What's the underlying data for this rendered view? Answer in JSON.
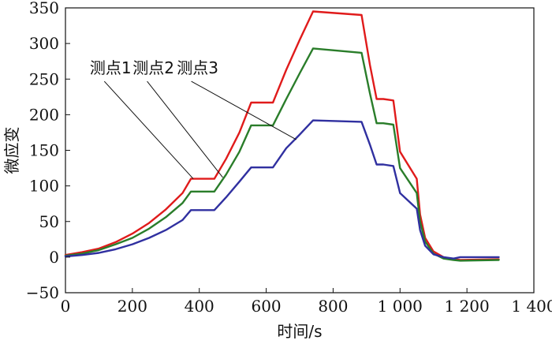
{
  "chart_data": {
    "type": "line",
    "title": "",
    "xlabel": "时间/s",
    "ylabel": "微应变",
    "xlim": [
      0,
      1400
    ],
    "ylim": [
      -50,
      350
    ],
    "xticks": [
      0,
      200,
      400,
      600,
      800,
      1000,
      1200,
      1400
    ],
    "xtick_labels": [
      "0",
      "200",
      "400",
      "600",
      "800",
      "1 000",
      "1 200",
      "1 400"
    ],
    "yticks": [
      -50,
      0,
      50,
      100,
      150,
      200,
      250,
      300,
      350
    ],
    "ytick_labels": [
      "−50",
      "0",
      "50",
      "100",
      "150",
      "200",
      "250",
      "300",
      "350"
    ],
    "grid": false,
    "legend": "none",
    "series": [
      {
        "name": "测点1",
        "color": "#e01b1b",
        "x": [
          0,
          50,
          100,
          150,
          200,
          250,
          300,
          350,
          375,
          445,
          480,
          520,
          555,
          620,
          660,
          700,
          740,
          885,
          910,
          930,
          950,
          980,
          1000,
          1050,
          1060,
          1075,
          1100,
          1130,
          1160,
          1180,
          1295
        ],
        "y": [
          3,
          7,
          12,
          21,
          33,
          48,
          67,
          90,
          110,
          110,
          138,
          175,
          217,
          217,
          263,
          305,
          345,
          340,
          270,
          222,
          222,
          220,
          148,
          110,
          60,
          27,
          8,
          0,
          -3,
          -4,
          -3
        ]
      },
      {
        "name": "测点2",
        "color": "#2a7d2a",
        "x": [
          0,
          50,
          100,
          150,
          200,
          250,
          300,
          350,
          375,
          445,
          480,
          520,
          555,
          620,
          660,
          700,
          740,
          885,
          910,
          930,
          950,
          980,
          1000,
          1050,
          1060,
          1075,
          1100,
          1130,
          1160,
          1180,
          1295
        ],
        "y": [
          2,
          5,
          10,
          18,
          27,
          40,
          56,
          76,
          92,
          92,
          116,
          148,
          185,
          185,
          222,
          258,
          293,
          287,
          230,
          188,
          188,
          186,
          125,
          90,
          50,
          22,
          5,
          -2,
          -4,
          -5,
          -4
        ]
      },
      {
        "name": "测点3",
        "color": "#3030a0",
        "x": [
          0,
          50,
          100,
          150,
          200,
          250,
          300,
          350,
          375,
          445,
          480,
          520,
          555,
          620,
          660,
          700,
          740,
          885,
          910,
          930,
          950,
          980,
          1000,
          1050,
          1060,
          1075,
          1100,
          1130,
          1160,
          1180,
          1295
        ],
        "y": [
          1,
          3,
          6,
          11,
          18,
          27,
          38,
          52,
          66,
          66,
          84,
          106,
          126,
          126,
          153,
          172,
          192,
          190,
          158,
          130,
          130,
          128,
          90,
          68,
          38,
          16,
          4,
          0,
          -2,
          0,
          0
        ]
      }
    ],
    "annotations": [
      {
        "text": "测点1",
        "x": 135,
        "y": 258,
        "arrow_to": [
          382,
          110
        ]
      },
      {
        "text": "测点2",
        "x": 263,
        "y": 258,
        "arrow_to": [
          470,
          112
        ]
      },
      {
        "text": "测点3",
        "x": 395,
        "y": 258,
        "arrow_to": [
          690,
          165
        ]
      }
    ]
  }
}
